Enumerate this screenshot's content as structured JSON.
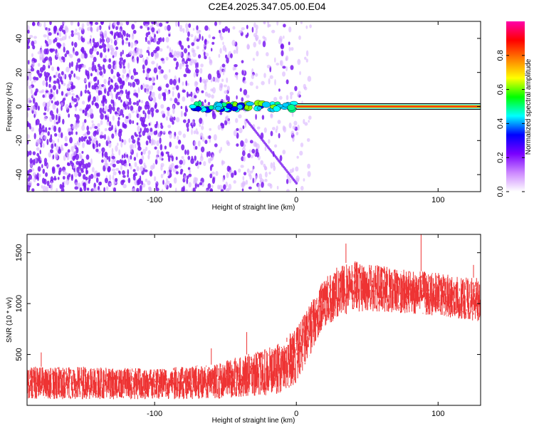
{
  "title": "C2E4.2025.347.05.00.E04",
  "colors": {
    "signal": "#ee3333",
    "speckle": "#7a1bf0",
    "background": "#ffffff",
    "colorbar_stops": [
      "#ffffff",
      "#cc88ff",
      "#7a00ff",
      "#0000ff",
      "#00ffff",
      "#00ff00",
      "#ffff00",
      "#ff8000",
      "#ff0000",
      "#ff00aa"
    ]
  },
  "chart_data": [
    {
      "type": "heatmap",
      "name": "spectrogram",
      "xlabel": "Height of straight line (km)",
      "ylabel": "Frequency (Hz)",
      "xlim": [
        -190,
        130
      ],
      "ylim": [
        -50,
        50
      ],
      "xticks": [
        -100,
        0,
        100
      ],
      "yticks": [
        -40,
        -20,
        0,
        20,
        40
      ],
      "ytick_labels": [
        "-40",
        "-20",
        "0",
        "20",
        "40"
      ],
      "xtick_labels": [
        "-100",
        "0",
        "100"
      ],
      "description_signal": {
        "frequency_hz": 0,
        "x_start_km": -75,
        "x_end_km": 130
      },
      "colorbar": {
        "label": "Normalized spectral amplitude",
        "range": [
          0,
          1
        ],
        "ticks": [
          "0.0",
          "0.2",
          "0.4",
          "0.6",
          "0.8"
        ],
        "tick_values": [
          0,
          0.2,
          0.4,
          0.6,
          0.8
        ]
      }
    },
    {
      "type": "line",
      "name": "snr",
      "xlabel": "Height of straight line (km)",
      "ylabel": "SNR (10 * v/v)",
      "xlim": [
        -190,
        130
      ],
      "ylim": [
        0,
        1680
      ],
      "xticks": [
        -100,
        0,
        100
      ],
      "xtick_labels": [
        "-100",
        "0",
        "100"
      ],
      "yticks": [
        500,
        1000,
        1500
      ],
      "ytick_labels": [
        "500",
        "1000",
        "1500"
      ],
      "envelope": {
        "x": [
          -190,
          -150,
          -100,
          -60,
          -40,
          -20,
          -10,
          0,
          10,
          20,
          30,
          40,
          60,
          80,
          100,
          120,
          130
        ],
        "lower": [
          60,
          60,
          60,
          60,
          80,
          100,
          120,
          220,
          500,
          780,
          860,
          920,
          920,
          900,
          880,
          840,
          820
        ],
        "upper": [
          380,
          380,
          360,
          400,
          480,
          560,
          640,
          760,
          1000,
          1250,
          1380,
          1420,
          1370,
          1330,
          1300,
          1260,
          1250
        ]
      }
    }
  ]
}
